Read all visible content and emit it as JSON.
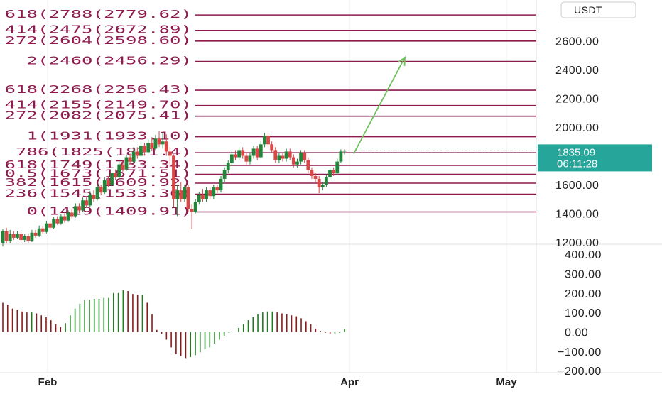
{
  "colors": {
    "fib_line": "#8e1a4e",
    "bull": "#22863a",
    "bear": "#d94747",
    "hist_pos": "#1e7b1e",
    "hist_neg": "#8b1a1a",
    "arrow": "#6ec05a",
    "price_tag": "#26a69a",
    "grid": "#ececec",
    "separator": "#dddddd"
  },
  "currency_label": "USDT",
  "fib_levels": [
    {
      "label": "618(2788(2779.62)",
      "price": 2779.62
    },
    {
      "label": "414(2475(2672.89)",
      "price": 2672.89
    },
    {
      "label": "272(2604(2598.60)",
      "price": 2598.6
    },
    {
      "label": "2(2460(2456.29)",
      "price": 2456.29
    },
    {
      "label": "618(2268(2256.43)",
      "price": 2256.43
    },
    {
      "label": "414(2155(2149.70)",
      "price": 2149.7
    },
    {
      "label": "272(2082(2075.41)",
      "price": 2075.41
    },
    {
      "label": "1(1931(1933.10)",
      "price": 1933.1
    },
    {
      "label": "786(1825(1821.4)",
      "price": 1821.4
    },
    {
      "label": "618(1749(1733.34)",
      "price": 1733.34
    },
    {
      "label": "0.5(1673(1671.51)",
      "price": 1671.51
    },
    {
      "label": "382(1615(1609.92)",
      "price": 1609.92
    },
    {
      "label": "236(1545(1533.36)",
      "price": 1533.36
    },
    {
      "label": "0(1419(1409.91)",
      "price": 1409.91
    }
  ],
  "chart_data": {
    "type": "candlestick",
    "price_axis": {
      "ticks": [
        2600,
        2400,
        2200,
        2000,
        1800,
        1600,
        1400,
        1200
      ],
      "tick_labels": [
        "2600.00",
        "2400.00",
        "2200.00",
        "2000.00",
        "1800.00",
        "1600.00",
        "1400.00",
        "1200.00"
      ]
    },
    "indicator_axis": {
      "ticks": [
        400,
        300,
        200,
        100,
        0,
        -100,
        -200
      ],
      "tick_labels": [
        "400.00",
        "300.00",
        "200.00",
        "100.00",
        "0.00",
        "−100.00",
        "−200.00"
      ]
    },
    "time_axis": {
      "labels": [
        "Feb",
        "Apr",
        "May"
      ]
    },
    "last_price": {
      "value": "1835.09",
      "countdown": "06:11:28"
    },
    "candles": [
      [
        1195,
        1275,
        1170,
        1290
      ],
      [
        1275,
        1205,
        1190,
        1300
      ],
      [
        1205,
        1255,
        1190,
        1285
      ],
      [
        1255,
        1230,
        1215,
        1275
      ],
      [
        1230,
        1255,
        1220,
        1275
      ],
      [
        1255,
        1215,
        1200,
        1270
      ],
      [
        1215,
        1240,
        1200,
        1255
      ],
      [
        1240,
        1210,
        1195,
        1260
      ],
      [
        1210,
        1265,
        1200,
        1285
      ],
      [
        1265,
        1245,
        1230,
        1285
      ],
      [
        1245,
        1295,
        1235,
        1315
      ],
      [
        1295,
        1270,
        1255,
        1310
      ],
      [
        1270,
        1330,
        1260,
        1345
      ],
      [
        1330,
        1300,
        1285,
        1345
      ],
      [
        1300,
        1360,
        1290,
        1375
      ],
      [
        1360,
        1330,
        1320,
        1380
      ],
      [
        1330,
        1380,
        1320,
        1395
      ],
      [
        1380,
        1350,
        1335,
        1400
      ],
      [
        1350,
        1405,
        1340,
        1420
      ],
      [
        1405,
        1380,
        1365,
        1430
      ],
      [
        1380,
        1450,
        1370,
        1470
      ],
      [
        1450,
        1420,
        1400,
        1470
      ],
      [
        1420,
        1490,
        1410,
        1510
      ],
      [
        1490,
        1455,
        1440,
        1510
      ],
      [
        1455,
        1530,
        1445,
        1555
      ],
      [
        1530,
        1500,
        1480,
        1560
      ],
      [
        1500,
        1580,
        1490,
        1600
      ],
      [
        1580,
        1545,
        1525,
        1600
      ],
      [
        1545,
        1630,
        1535,
        1650
      ],
      [
        1630,
        1600,
        1580,
        1655
      ],
      [
        1600,
        1680,
        1590,
        1700
      ],
      [
        1680,
        1650,
        1630,
        1705
      ],
      [
        1650,
        1740,
        1640,
        1760
      ],
      [
        1740,
        1705,
        1690,
        1765
      ],
      [
        1705,
        1790,
        1695,
        1810
      ],
      [
        1790,
        1760,
        1740,
        1815
      ],
      [
        1760,
        1830,
        1750,
        1860
      ],
      [
        1830,
        1800,
        1780,
        1860
      ],
      [
        1800,
        1870,
        1790,
        1900
      ],
      [
        1870,
        1825,
        1800,
        1890
      ],
      [
        1825,
        1890,
        1815,
        1915
      ],
      [
        1890,
        1850,
        1835,
        1930
      ],
      [
        1850,
        1920,
        1840,
        1945
      ],
      [
        1920,
        1880,
        1860,
        1970
      ],
      [
        1880,
        1900,
        1850,
        1960
      ],
      [
        1900,
        1830,
        1800,
        1950
      ],
      [
        1830,
        1800,
        1720,
        1860
      ],
      [
        1800,
        1500,
        1440,
        1810
      ],
      [
        1500,
        1560,
        1380,
        1600
      ],
      [
        1560,
        1500,
        1480,
        1620
      ],
      [
        1500,
        1580,
        1480,
        1600
      ],
      [
        1580,
        1430,
        1410,
        1600
      ],
      [
        1430,
        1410,
        1290,
        1460
      ],
      [
        1410,
        1480,
        1400,
        1500
      ],
      [
        1480,
        1530,
        1460,
        1550
      ],
      [
        1530,
        1500,
        1480,
        1570
      ],
      [
        1500,
        1560,
        1480,
        1580
      ],
      [
        1560,
        1520,
        1500,
        1580
      ],
      [
        1520,
        1580,
        1500,
        1600
      ],
      [
        1580,
        1560,
        1540,
        1600
      ],
      [
        1560,
        1640,
        1545,
        1660
      ],
      [
        1640,
        1700,
        1620,
        1720
      ],
      [
        1700,
        1750,
        1680,
        1770
      ],
      [
        1750,
        1810,
        1730,
        1830
      ],
      [
        1810,
        1790,
        1770,
        1840
      ],
      [
        1790,
        1840,
        1770,
        1860
      ],
      [
        1840,
        1800,
        1780,
        1860
      ],
      [
        1800,
        1760,
        1740,
        1820
      ],
      [
        1760,
        1800,
        1740,
        1820
      ],
      [
        1800,
        1850,
        1780,
        1870
      ],
      [
        1850,
        1790,
        1770,
        1870
      ],
      [
        1790,
        1880,
        1780,
        1900
      ],
      [
        1880,
        1940,
        1860,
        1960
      ],
      [
        1940,
        1880,
        1860,
        1960
      ],
      [
        1880,
        1840,
        1820,
        1900
      ],
      [
        1840,
        1770,
        1750,
        1860
      ],
      [
        1770,
        1800,
        1750,
        1820
      ],
      [
        1800,
        1780,
        1760,
        1820
      ],
      [
        1780,
        1830,
        1760,
        1850
      ],
      [
        1830,
        1790,
        1770,
        1850
      ],
      [
        1790,
        1740,
        1720,
        1810
      ],
      [
        1740,
        1760,
        1720,
        1780
      ],
      [
        1760,
        1820,
        1740,
        1840
      ],
      [
        1820,
        1770,
        1750,
        1840
      ],
      [
        1770,
        1700,
        1680,
        1790
      ],
      [
        1700,
        1660,
        1640,
        1720
      ],
      [
        1660,
        1640,
        1620,
        1680
      ],
      [
        1640,
        1580,
        1540,
        1660
      ],
      [
        1580,
        1600,
        1560,
        1620
      ],
      [
        1600,
        1650,
        1580,
        1670
      ],
      [
        1650,
        1700,
        1630,
        1720
      ],
      [
        1700,
        1680,
        1660,
        1720
      ],
      [
        1680,
        1760,
        1670,
        1780
      ],
      [
        1760,
        1830,
        1750,
        1845
      ],
      [
        1830,
        1835.09,
        1810,
        1845
      ]
    ],
    "histogram": [
      150,
      140,
      120,
      115,
      105,
      100,
      100,
      95,
      85,
      75,
      60,
      40,
      25,
      45,
      85,
      120,
      145,
      165,
      165,
      170,
      170,
      175,
      175,
      200,
      200,
      215,
      210,
      195,
      190,
      190,
      150,
      90,
      10,
      -10,
      -40,
      -80,
      -115,
      -125,
      -135,
      -130,
      -120,
      -105,
      -90,
      -80,
      -60,
      -40,
      -20,
      -5,
      0,
      20,
      40,
      60,
      75,
      90,
      100,
      105,
      105,
      100,
      95,
      90,
      85,
      80,
      70,
      55,
      40,
      15,
      5,
      -5,
      -10,
      -8,
      -5,
      15
    ]
  }
}
